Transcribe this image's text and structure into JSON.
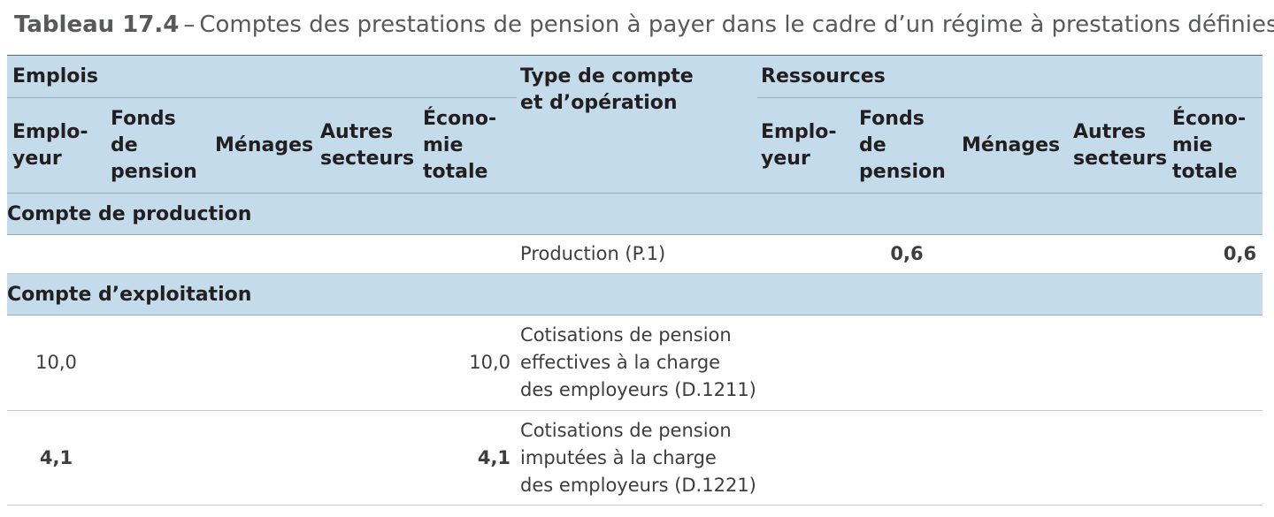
{
  "caption": {
    "label": "Tableau 17.4",
    "dash": "–",
    "title": "Comptes des prestations de pension à payer dans le cadre d’un régime à prestations définies"
  },
  "header": {
    "uses_label": "Emplois",
    "type_label_line1": "Type de compte",
    "type_label_line2": "et d’opération",
    "resources_label": "Ressources",
    "sectors": {
      "employer_1": "Emplo-",
      "employer_2": "yeur",
      "fund_1": "Fonds",
      "fund_2": "de",
      "fund_3": "pension",
      "households": "Ménages",
      "other_1": "Autres",
      "other_2": "secteurs",
      "economy_1": "Écono-",
      "economy_2": "mie",
      "economy_3": "totale"
    }
  },
  "sections": {
    "production": {
      "title": "Compte de production",
      "row": {
        "desc": "Production (P.1)",
        "res_fund": "0,6",
        "res_total": "0,6"
      }
    },
    "exploitation": {
      "title": "Compte d’exploitation",
      "rows": [
        {
          "emp_employer": "10,0",
          "emp_total": "10,0",
          "desc_1": "Cotisations de pension",
          "desc_2": "effectives à la charge",
          "desc_3": "des employeurs (D.1211)"
        },
        {
          "emp_employer": "4,1",
          "emp_total": "4,1",
          "desc_1": "Cotisations de pension",
          "desc_2": "imputées à la charge",
          "desc_3": "des employeurs (D.1221)"
        }
      ]
    }
  },
  "colors": {
    "header_bg": "#c3dbea",
    "caption_text": "#58595b",
    "body_text": "#231f20"
  }
}
